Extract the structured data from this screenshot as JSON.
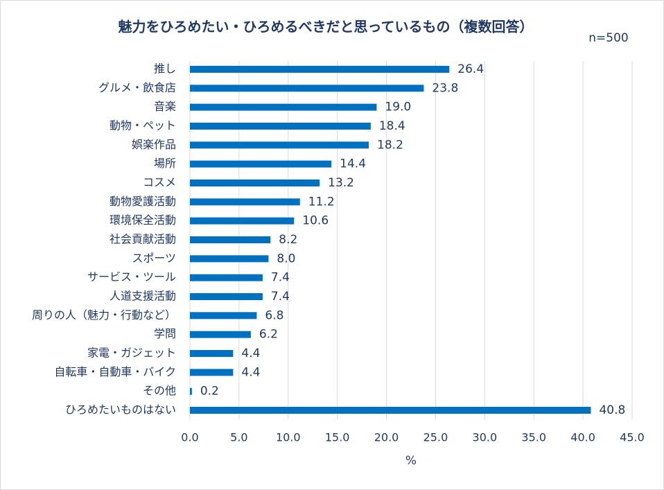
{
  "chart_data": {
    "type": "barh",
    "title": "魅力をひろめたい・ひろめるべきだと思っているもの（複数回答）",
    "subtitle": "n=500",
    "x_label": "%",
    "categories": [
      "推し",
      "グルメ・飲食店",
      "音楽",
      "動物・ペット",
      "娯楽作品",
      "場所",
      "コスメ",
      "動物愛護活動",
      "環境保全活動",
      "社会貢献活動",
      "スポーツ",
      "サービス・ツール",
      "人道支援活動",
      "周りの人（魅力・行動など）",
      "学問",
      "家電・ガジェット",
      "自転車・自動車・バイク",
      "その他",
      "ひろめたいものはない"
    ],
    "values": [
      26.4,
      23.8,
      19.0,
      18.4,
      18.2,
      14.4,
      13.2,
      11.2,
      10.6,
      8.2,
      8.0,
      7.4,
      7.4,
      6.8,
      6.2,
      4.4,
      4.4,
      0.2,
      40.8
    ],
    "value_labels": [
      "26.4",
      "23.8",
      "19.0",
      "18.4",
      "18.2",
      "14.4",
      "13.2",
      "11.2",
      "10.6",
      "8.2",
      "8.0",
      "7.4",
      "7.4",
      "6.8",
      "6.2",
      "4.4",
      "4.4",
      "0.2",
      "40.8"
    ],
    "color": "#0070c0",
    "xlim": [
      0,
      45
    ],
    "xticks": [
      {
        "value": 0,
        "label": "0.0"
      },
      {
        "value": 5,
        "label": "5.0"
      },
      {
        "value": 10,
        "label": "10.0"
      },
      {
        "value": 15,
        "label": "15.0"
      },
      {
        "value": 20,
        "label": "20.0"
      },
      {
        "value": 25,
        "label": "25.0"
      },
      {
        "value": 30,
        "label": "30.0"
      },
      {
        "value": 35,
        "label": "35.0"
      },
      {
        "value": 40,
        "label": "40.0"
      },
      {
        "value": 45,
        "label": "45.0"
      }
    ],
    "grid": true
  }
}
